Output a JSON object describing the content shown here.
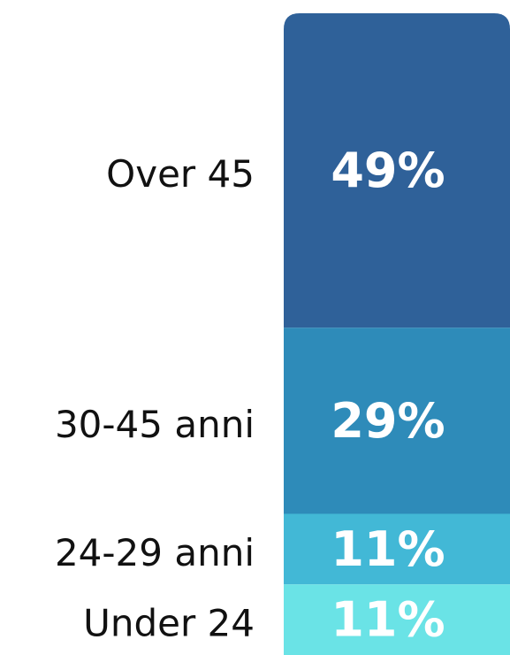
{
  "chart_data": {
    "type": "stacked_bar",
    "categories": [
      "Over 45",
      "30-45 anni",
      "24-29 anni",
      "Under 24"
    ],
    "values": [
      49,
      29,
      11,
      11
    ],
    "value_labels": [
      "49%",
      "29%",
      "11%",
      "11%"
    ],
    "colors": [
      "#2f6199",
      "#2e8bb9",
      "#42b8d6",
      "#6ae3e6"
    ]
  }
}
